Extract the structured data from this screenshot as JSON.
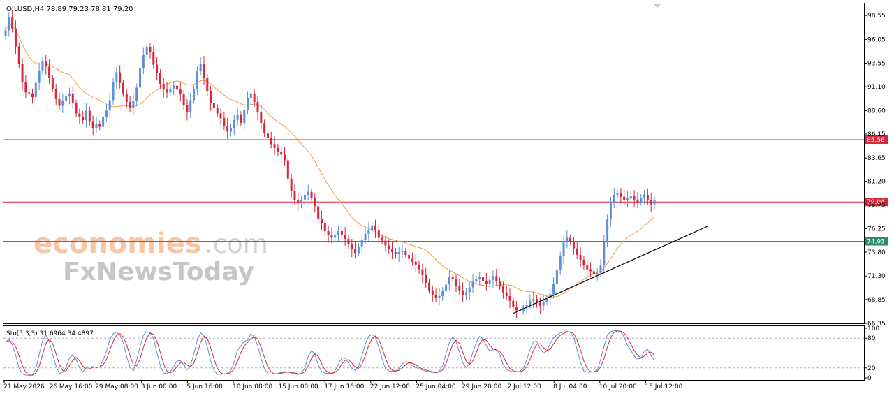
{
  "chart_data": [
    {
      "type": "candlestick",
      "symbol": "OILUSD,H4",
      "ohlc_readout": "78.89 79.23 78.81 79.20",
      "title": "OILUSD,H4  78.89 79.23 78.81 79.20",
      "ylim": [
        66.35,
        99.8
      ],
      "y_ticks": [
        "98.55",
        "96.05",
        "93.55",
        "91.10",
        "88.60",
        "86.15",
        "83.65",
        "81.20",
        "78.75",
        "76.25",
        "73.80",
        "71.30",
        "68.85",
        "66.35"
      ],
      "x_ticks": [
        "21 May 2026",
        "26 May 16:00",
        "29 May 08:00",
        "3 Jun 00:00",
        "5 Jun 16:00",
        "10 Jun 08:00",
        "15 Jun 00:00",
        "17 Jun 16:00",
        "22 Jun 12:00",
        "25 Jun 04:00",
        "29 Jun 20:00",
        "2 Jul 12:00",
        "8 Jul 04:00",
        "10 Jul 20:00",
        "15 Jul 12:00"
      ],
      "levels": [
        {
          "value": 85.56,
          "label": "85.56",
          "color": "#d9263b"
        },
        {
          "value": 79.04,
          "label": "79.04",
          "color": "#d9263b"
        },
        {
          "value": 74.93,
          "label": "74.93",
          "color": "#2e8b6f"
        }
      ],
      "trendline": {
        "from_close": 67.4,
        "to_close": 76.5,
        "color": "#000000"
      },
      "moving_average_color": "#f0a040",
      "colors": {
        "bull": "#5b8fd9",
        "bear": "#d9263b",
        "ma": "#f0a040"
      },
      "closes": [
        97.0,
        98.4,
        97.2,
        95.3,
        93.5,
        91.6,
        90.5,
        90.4,
        90.0,
        91.5,
        92.8,
        93.8,
        93.2,
        92.0,
        90.9,
        89.8,
        89.1,
        89.6,
        90.1,
        90.4,
        89.4,
        88.3,
        87.9,
        87.6,
        88.6,
        87.5,
        86.8,
        87.2,
        86.9,
        87.9,
        88.6,
        89.7,
        91.6,
        92.6,
        91.5,
        90.4,
        89.5,
        88.9,
        89.6,
        91.0,
        93.0,
        94.4,
        95.2,
        94.7,
        93.4,
        92.5,
        91.4,
        90.8,
        90.5,
        90.9,
        91.2,
        90.8,
        90.3,
        89.2,
        88.4,
        89.7,
        90.9,
        92.7,
        93.5,
        92.0,
        90.6,
        89.4,
        88.9,
        88.3,
        87.8,
        87.0,
        86.4,
        86.8,
        87.6,
        88.2,
        87.3,
        88.7,
        89.9,
        90.4,
        89.5,
        88.4,
        87.3,
        86.2,
        85.7,
        85.1,
        84.7,
        84.3,
        84.0,
        83.4,
        81.5,
        80.2,
        79.2,
        78.9,
        79.3,
        79.8,
        80.1,
        79.5,
        78.6,
        77.3,
        76.8,
        76.0,
        75.6,
        75.3,
        75.6,
        76.0,
        75.6,
        75.2,
        74.6,
        74.1,
        73.7,
        74.4,
        75.1,
        75.7,
        76.1,
        76.6,
        76.1,
        75.3,
        75.0,
        74.5,
        74.1,
        73.8,
        73.6,
        73.8,
        73.9,
        73.5,
        73.1,
        72.8,
        72.5,
        72.0,
        71.4,
        70.6,
        69.8,
        69.3,
        69.0,
        69.2,
        69.7,
        70.4,
        71.2,
        71.0,
        70.3,
        69.8,
        69.3,
        69.6,
        70.1,
        70.7,
        71.0,
        71.2,
        70.8,
        70.5,
        70.9,
        71.3,
        70.8,
        70.2,
        69.6,
        69.2,
        68.7,
        68.1,
        67.7,
        67.6,
        68.0,
        68.3,
        68.7,
        68.9,
        68.5,
        68.2,
        68.6,
        69.0,
        69.4,
        70.5,
        71.9,
        73.4,
        74.8,
        75.3,
        74.9,
        74.2,
        73.5,
        73.0,
        72.4,
        72.0,
        71.8,
        71.5,
        71.6,
        72.4,
        74.8,
        77.3,
        79.0,
        79.8,
        80.0,
        79.6,
        79.2,
        79.4,
        79.7,
        79.3,
        79.0,
        79.5,
        79.8,
        79.2,
        78.8,
        79.2
      ]
    },
    {
      "type": "line",
      "title": "Sto(5,3,3) 31.6964 34.4897",
      "indicator": "Sto(5,3,3)",
      "k_value": "31.6964",
      "d_value": "34.4897",
      "ylim": [
        0,
        100
      ],
      "y_ticks": [
        "100",
        "80",
        "20",
        "0"
      ],
      "levels": [
        80,
        20
      ],
      "colors": {
        "k": "#5b8fd9",
        "d": "#d9263b"
      }
    }
  ]
}
